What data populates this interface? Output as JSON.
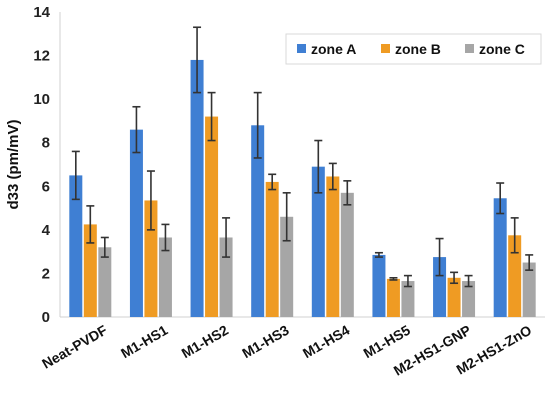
{
  "chart_data": {
    "type": "bar",
    "ylabel": "d33 (pm/mV)",
    "xlabel": "",
    "ylim": [
      0,
      14
    ],
    "yticks": [
      0,
      2,
      4,
      6,
      8,
      10,
      12,
      14
    ],
    "grid": false,
    "legend_position": "top-right",
    "categories": [
      "Neat-PVDF",
      "M1-HS1",
      "M1-HS2",
      "M1-HS3",
      "M1-HS4",
      "M1-HS5",
      "M2-HS1-GNP",
      "M2-HS1-ZnO"
    ],
    "series": [
      {
        "name": "zone A",
        "color": "#3f7fd3",
        "values": [
          6.5,
          8.6,
          11.8,
          8.8,
          6.9,
          2.85,
          2.75,
          5.45
        ],
        "errors": [
          1.1,
          1.05,
          1.5,
          1.5,
          1.2,
          0.1,
          0.85,
          0.7
        ]
      },
      {
        "name": "zone B",
        "color": "#ef9b23",
        "values": [
          4.25,
          5.35,
          9.2,
          6.2,
          6.45,
          1.75,
          1.8,
          3.75
        ],
        "errors": [
          0.85,
          1.35,
          1.1,
          0.35,
          0.6,
          0.05,
          0.25,
          0.8
        ]
      },
      {
        "name": "zone C",
        "color": "#a6a6a6",
        "values": [
          3.2,
          3.65,
          3.65,
          4.6,
          5.7,
          1.65,
          1.65,
          2.5
        ],
        "errors": [
          0.45,
          0.6,
          0.9,
          1.1,
          0.55,
          0.25,
          0.25,
          0.35
        ]
      }
    ]
  }
}
